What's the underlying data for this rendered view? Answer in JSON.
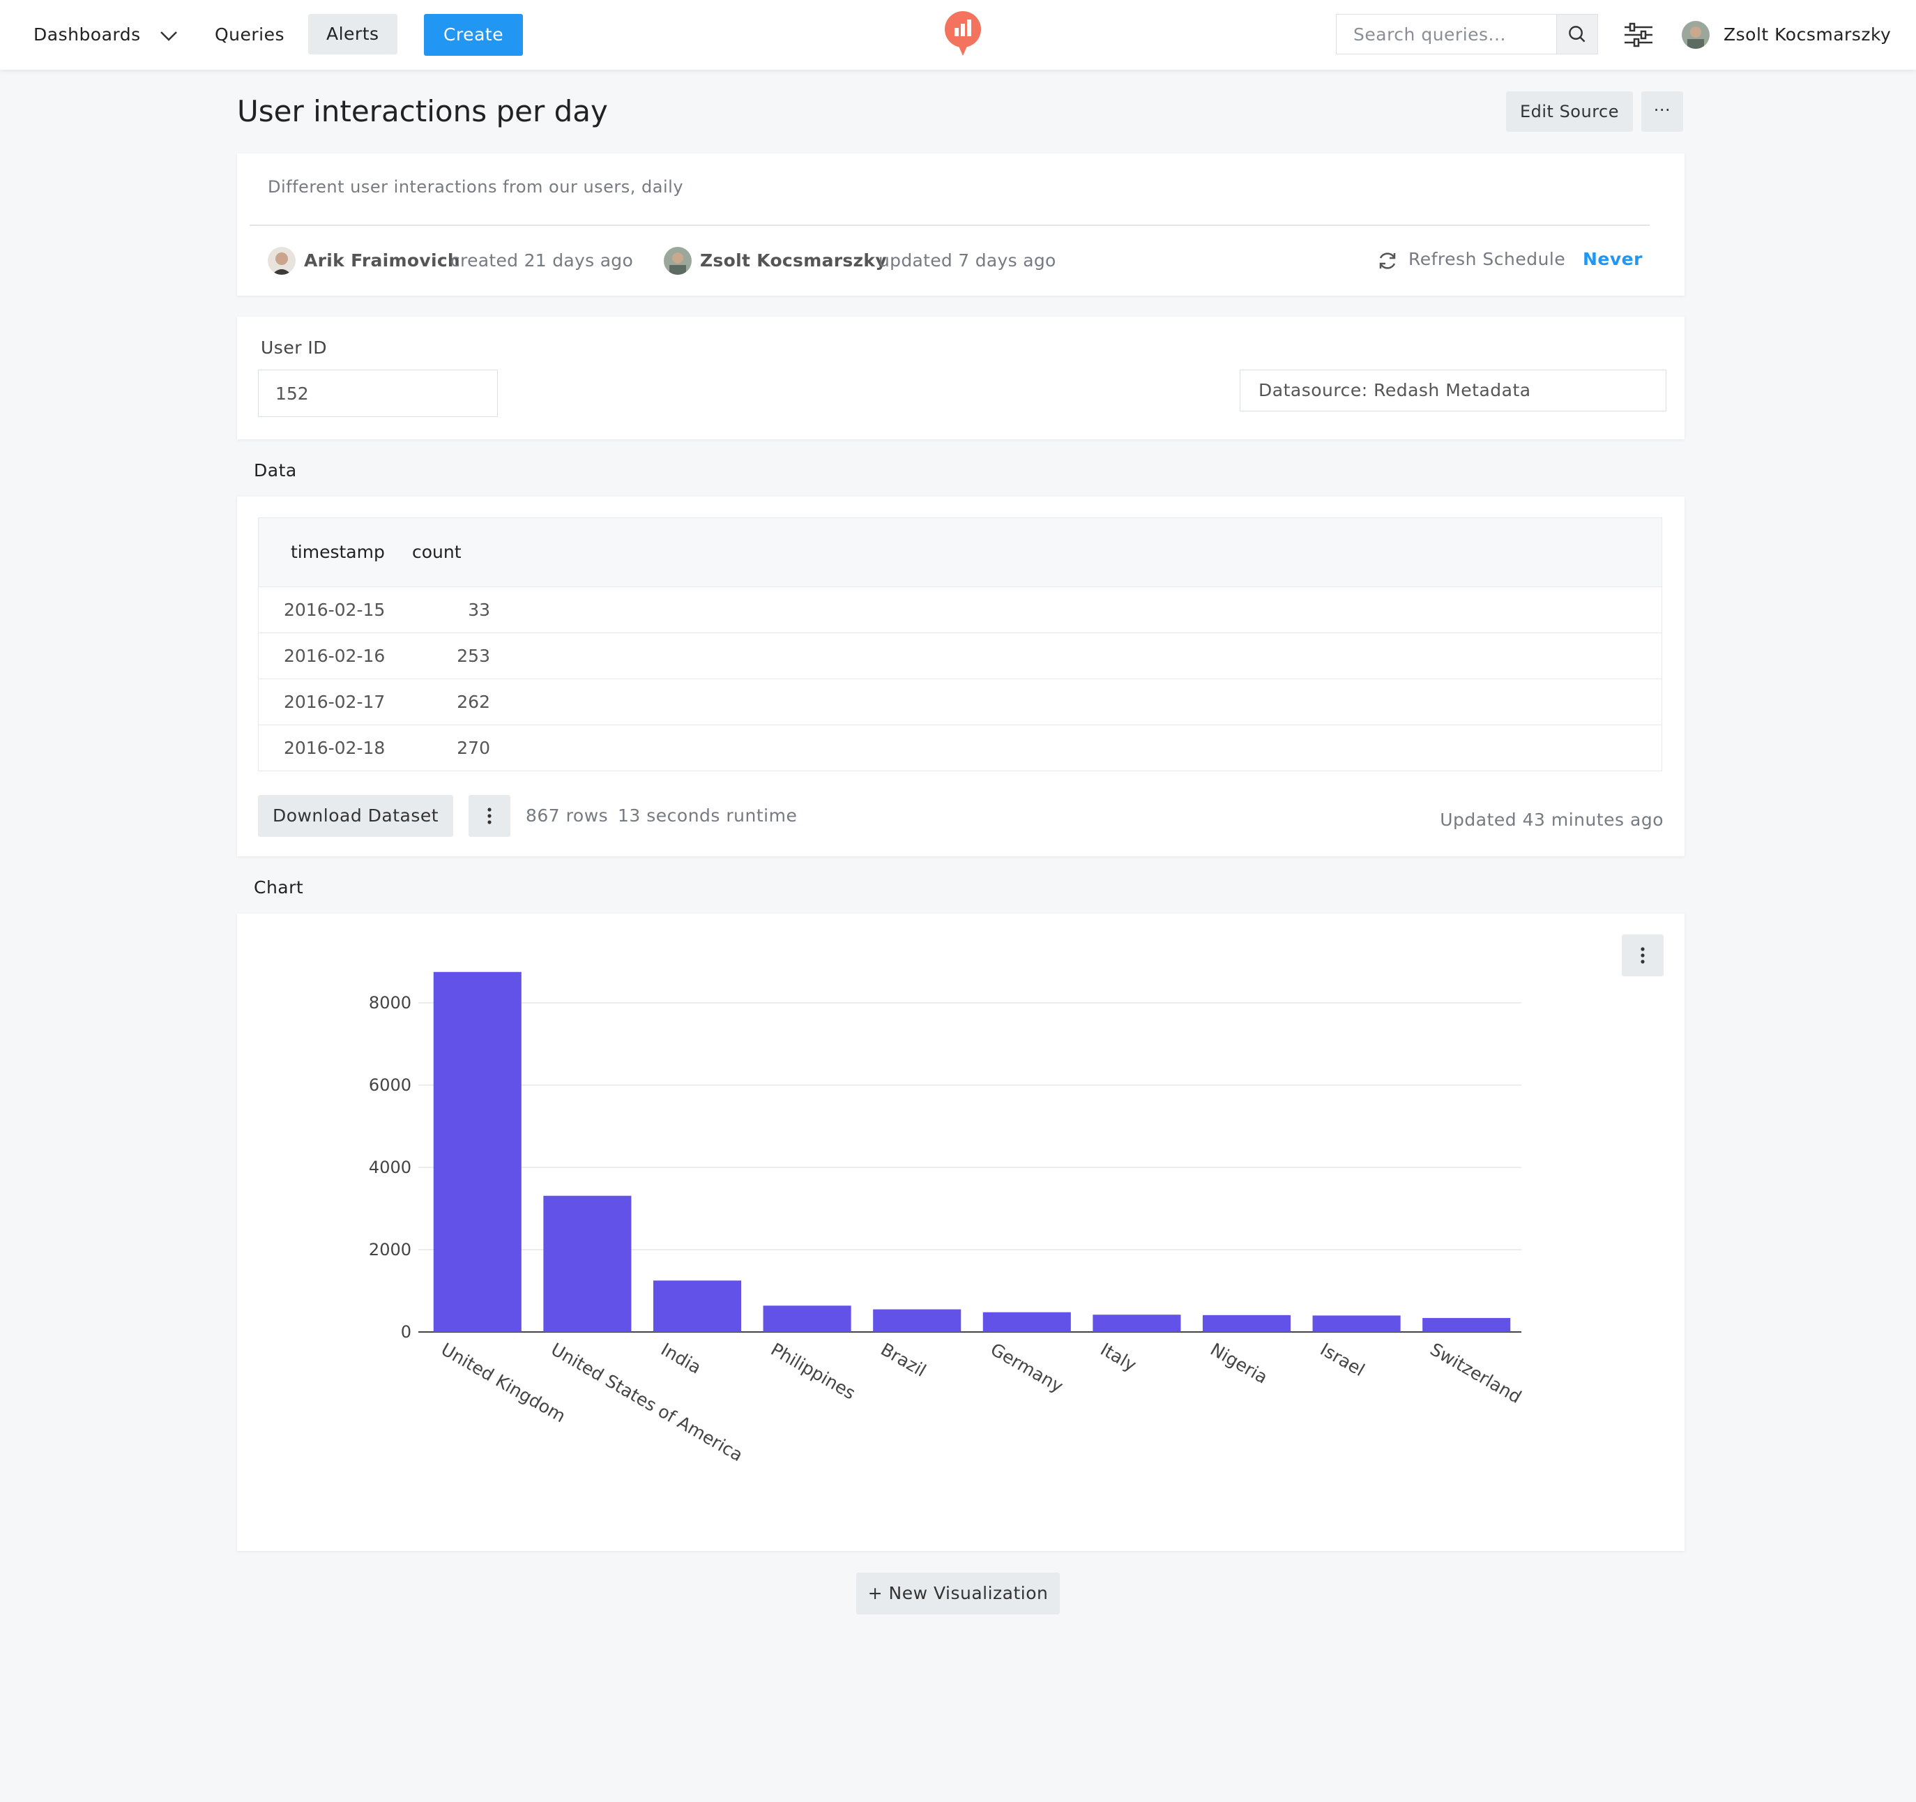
{
  "nav": {
    "dashboards_label": "Dashboards",
    "queries_label": "Queries",
    "alerts_label": "Alerts",
    "create_label": "Create",
    "search_placeholder": "Search queries...",
    "user_name": "Zsolt Kocsmarszky"
  },
  "query": {
    "title": "User interactions per day",
    "edit_source_label": "Edit Source",
    "more_label": "···",
    "description": "Different user interactions from our users, daily",
    "creator_name": "Arik Fraimovich",
    "created_text": "created 21 days ago",
    "updater_name": "Zsolt Kocsmarszky",
    "updated_text": "updated 7 days ago",
    "refresh_label": "Refresh Schedule",
    "refresh_value": "Never"
  },
  "params": {
    "user_id_label": "User ID",
    "user_id_value": "152",
    "datasource_label": "Datasource: Redash Metadata"
  },
  "data_section": {
    "title": "Data",
    "columns": [
      "timestamp",
      "count"
    ],
    "rows": [
      [
        "2016-02-15",
        "33"
      ],
      [
        "2016-02-16",
        "253"
      ],
      [
        "2016-02-17",
        "262"
      ],
      [
        "2016-02-18",
        "270"
      ]
    ],
    "download_label": "Download Dataset",
    "row_count": "867 rows",
    "runtime": "13 seconds runtime",
    "updated": "Updated 43 minutes ago"
  },
  "chart_section": {
    "title": "Chart",
    "new_viz_label": "+ New Visualization"
  },
  "chart_data": {
    "type": "bar",
    "title": "",
    "xlabel": "",
    "ylabel": "",
    "categories": [
      "United Kingdom",
      "United States of America",
      "India",
      "Philippines",
      "Brazil",
      "Germany",
      "Italy",
      "Nigeria",
      "Israel",
      "Switzerland"
    ],
    "values": [
      8750,
      3310,
      1250,
      640,
      550,
      480,
      420,
      410,
      400,
      340
    ],
    "ylim": [
      0,
      8000
    ],
    "yticks": [
      0,
      2000,
      4000,
      6000,
      8000
    ],
    "grid": true,
    "bar_color": "#6352e8"
  },
  "colors": {
    "accent": "#2196f3",
    "logo": "#f4735e",
    "bar": "#6352e8"
  }
}
